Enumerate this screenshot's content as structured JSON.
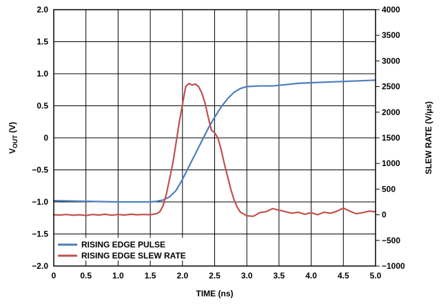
{
  "chart_data": {
    "type": "line",
    "xlabel": "TIME (ns)",
    "ylabel_left": {
      "main": "V",
      "sub": "OUT",
      "unit": " (V)"
    },
    "ylabel_right": "SLEW RATE (V/µs)",
    "xlim": [
      0,
      5
    ],
    "ylim_left": [
      -2,
      2
    ],
    "ylim_right": [
      -1000,
      4000
    ],
    "grid": true,
    "legend_position": "bottom-left",
    "x_ticks": [
      "0",
      "0.5",
      "1.0",
      "1.5",
      "2.0",
      "2.5",
      "3.0",
      "3.5",
      "4.0",
      "4.5",
      "5.0"
    ],
    "y_left_ticks": [
      "2.0",
      "1.5",
      "1.0",
      "0.5",
      "0",
      "−0.5",
      "−1.0",
      "−1.5",
      "−2.0"
    ],
    "y_right_ticks": [
      "4000",
      "3500",
      "3000",
      "2500",
      "2000",
      "1500",
      "1000",
      "500",
      "0",
      "−500",
      "−1000"
    ],
    "series": [
      {
        "name": "RISING EDGE PULSE",
        "axis": "left",
        "color": "#4a7ebb",
        "x": [
          0,
          0.5,
          1.0,
          1.5,
          1.6,
          1.7,
          1.8,
          1.9,
          2.0,
          2.1,
          2.2,
          2.3,
          2.4,
          2.5,
          2.6,
          2.7,
          2.8,
          2.9,
          3.0,
          3.2,
          3.4,
          3.6,
          3.8,
          4.0,
          4.5,
          5.0
        ],
        "y": [
          -0.98,
          -0.99,
          -1.0,
          -1.0,
          -0.99,
          -0.97,
          -0.92,
          -0.82,
          -0.65,
          -0.45,
          -0.25,
          -0.05,
          0.15,
          0.32,
          0.48,
          0.61,
          0.71,
          0.77,
          0.8,
          0.81,
          0.81,
          0.83,
          0.85,
          0.86,
          0.88,
          0.9
        ]
      },
      {
        "name": "RISING EDGE SLEW RATE",
        "axis": "right",
        "color": "#c0504d",
        "x": [
          0,
          0.1,
          0.2,
          0.3,
          0.4,
          0.5,
          0.6,
          0.7,
          0.8,
          0.9,
          1.0,
          1.1,
          1.2,
          1.3,
          1.4,
          1.5,
          1.6,
          1.65,
          1.7,
          1.75,
          1.8,
          1.85,
          1.9,
          1.95,
          2.0,
          2.05,
          2.1,
          2.15,
          2.2,
          2.25,
          2.3,
          2.35,
          2.4,
          2.45,
          2.5,
          2.55,
          2.6,
          2.65,
          2.7,
          2.75,
          2.8,
          2.85,
          2.9,
          3.0,
          3.1,
          3.2,
          3.3,
          3.4,
          3.5,
          3.6,
          3.7,
          3.8,
          3.9,
          4.0,
          4.1,
          4.2,
          4.3,
          4.4,
          4.5,
          4.6,
          4.7,
          4.8,
          4.9,
          5.0
        ],
        "y": [
          0,
          -5,
          5,
          -10,
          0,
          -15,
          5,
          -5,
          10,
          -10,
          5,
          -5,
          10,
          0,
          5,
          0,
          20,
          60,
          180,
          400,
          700,
          1000,
          1400,
          1800,
          2150,
          2500,
          2560,
          2530,
          2550,
          2500,
          2380,
          2180,
          1900,
          1650,
          1600,
          1500,
          1280,
          1000,
          750,
          500,
          300,
          150,
          50,
          -20,
          -30,
          40,
          60,
          120,
          90,
          60,
          30,
          50,
          10,
          40,
          0,
          50,
          30,
          70,
          130,
          70,
          20,
          40,
          70,
          60
        ]
      }
    ]
  }
}
